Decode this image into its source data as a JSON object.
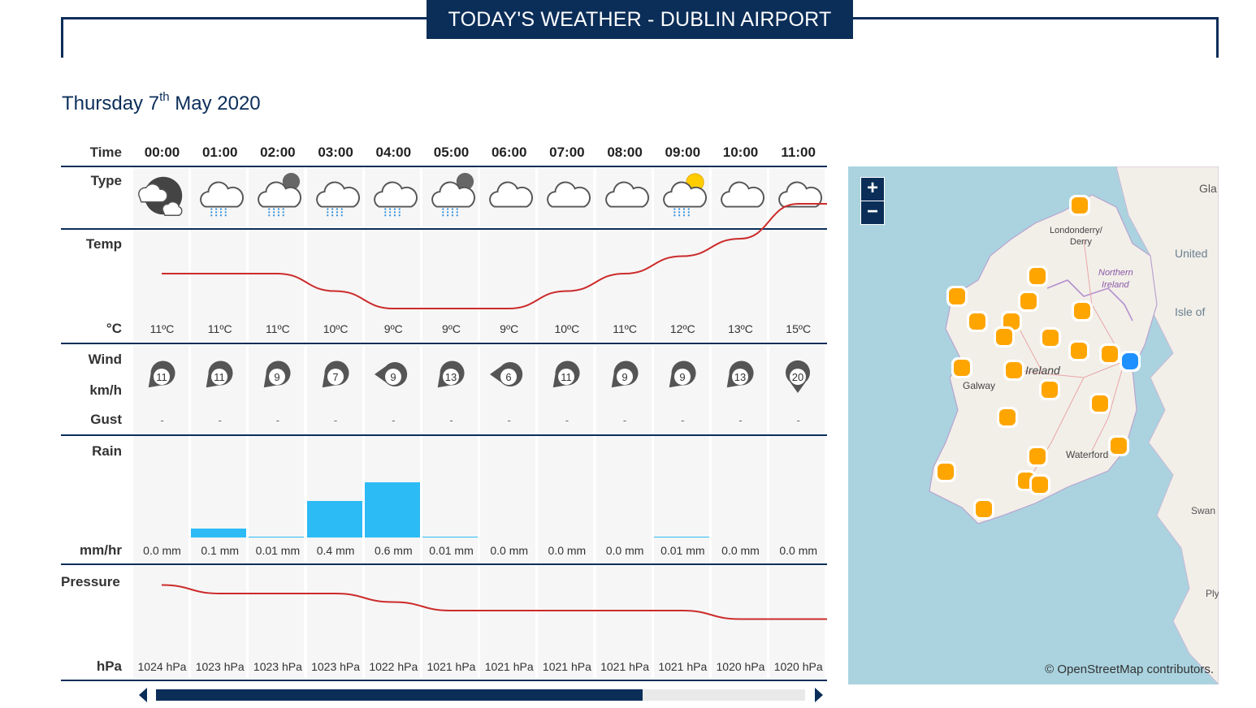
{
  "header": {
    "title": "TODAY'S WEATHER - DUBLIN AIRPORT"
  },
  "date": {
    "weekday_day": "Thursday 7",
    "suffix": "th",
    "month_year": "May 2020"
  },
  "labels": {
    "time": "Time",
    "type": "Type",
    "temp": "Temp",
    "temp_unit": "°C",
    "wind": "Wind",
    "wind_unit": "km/h",
    "gust": "Gust",
    "rain": "Rain",
    "rain_unit": "mm/hr",
    "pressure": "Pressure",
    "pressure_unit": "hPa"
  },
  "hours": [
    {
      "time": "00:00",
      "icon": "cloud-moon-icon",
      "temp": "11ºC",
      "temp_value": 11,
      "wind": "11",
      "wind_dir": 225,
      "gust": "-",
      "rain": "0.0 mm",
      "rain_value": 0.0,
      "pressure": "1024 hPa",
      "pressure_value": 1024
    },
    {
      "time": "01:00",
      "icon": "cloud-rain-icon",
      "temp": "11ºC",
      "temp_value": 11,
      "wind": "11",
      "wind_dir": 225,
      "gust": "-",
      "rain": "0.1 mm",
      "rain_value": 0.1,
      "pressure": "1023 hPa",
      "pressure_value": 1023
    },
    {
      "time": "02:00",
      "icon": "cloud-moon-rain-icon",
      "temp": "11ºC",
      "temp_value": 11,
      "wind": "9",
      "wind_dir": 225,
      "gust": "-",
      "rain": "0.01 mm",
      "rain_value": 0.01,
      "pressure": "1023 hPa",
      "pressure_value": 1023
    },
    {
      "time": "03:00",
      "icon": "cloud-rain-icon",
      "temp": "10ºC",
      "temp_value": 10,
      "wind": "7",
      "wind_dir": 225,
      "gust": "-",
      "rain": "0.4 mm",
      "rain_value": 0.4,
      "pressure": "1023 hPa",
      "pressure_value": 1023
    },
    {
      "time": "04:00",
      "icon": "cloud-rain-icon",
      "temp": "9ºC",
      "temp_value": 9,
      "wind": "9",
      "wind_dir": 270,
      "gust": "-",
      "rain": "0.6 mm",
      "rain_value": 0.6,
      "pressure": "1022 hPa",
      "pressure_value": 1022
    },
    {
      "time": "05:00",
      "icon": "cloud-moon-rain-icon",
      "temp": "9ºC",
      "temp_value": 9,
      "wind": "13",
      "wind_dir": 225,
      "gust": "-",
      "rain": "0.01 mm",
      "rain_value": 0.01,
      "pressure": "1021 hPa",
      "pressure_value": 1021
    },
    {
      "time": "06:00",
      "icon": "cloud-icon",
      "temp": "9ºC",
      "temp_value": 9,
      "wind": "6",
      "wind_dir": 270,
      "gust": "-",
      "rain": "0.0 mm",
      "rain_value": 0.0,
      "pressure": "1021 hPa",
      "pressure_value": 1021
    },
    {
      "time": "07:00",
      "icon": "cloud-icon",
      "temp": "10ºC",
      "temp_value": 10,
      "wind": "11",
      "wind_dir": 225,
      "gust": "-",
      "rain": "0.0 mm",
      "rain_value": 0.0,
      "pressure": "1021 hPa",
      "pressure_value": 1021
    },
    {
      "time": "08:00",
      "icon": "cloud-icon",
      "temp": "11ºC",
      "temp_value": 11,
      "wind": "9",
      "wind_dir": 225,
      "gust": "-",
      "rain": "0.0 mm",
      "rain_value": 0.0,
      "pressure": "1021 hPa",
      "pressure_value": 1021
    },
    {
      "time": "09:00",
      "icon": "cloud-sun-rain-icon",
      "temp": "12ºC",
      "temp_value": 12,
      "wind": "9",
      "wind_dir": 225,
      "gust": "-",
      "rain": "0.01 mm",
      "rain_value": 0.01,
      "pressure": "1021 hPa",
      "pressure_value": 1021
    },
    {
      "time": "10:00",
      "icon": "cloud-icon",
      "temp": "13ºC",
      "temp_value": 13,
      "wind": "13",
      "wind_dir": 225,
      "gust": "-",
      "rain": "0.0 mm",
      "rain_value": 0.0,
      "pressure": "1020 hPa",
      "pressure_value": 1020
    },
    {
      "time": "11:00",
      "icon": "cloud-icon",
      "temp": "15ºC",
      "temp_value": 15,
      "wind": "20",
      "wind_dir": 180,
      "gust": "-",
      "rain": "0.0 mm",
      "rain_value": 0.0,
      "pressure": "1020 hPa",
      "pressure_value": 1020
    }
  ],
  "map": {
    "zoom_in": "+",
    "zoom_out": "−",
    "credit": "© OpenStreetMap contributors.",
    "place_labels": [
      "Londonderry/",
      "Derry",
      "Northern",
      "Ireland",
      "Ireland",
      "Galway",
      "Waterford",
      "United",
      "Isle of",
      "Swan",
      "Gla",
      "Ply"
    ]
  },
  "colors": {
    "navy": "#0b2e59",
    "temp_line": "#cc2b2b",
    "rain_bar": "#2dbbf6",
    "station_marker": "#ffa500",
    "selected_marker": "#1e90ff",
    "sea": "#aad3df",
    "land": "#f2efe9"
  }
}
